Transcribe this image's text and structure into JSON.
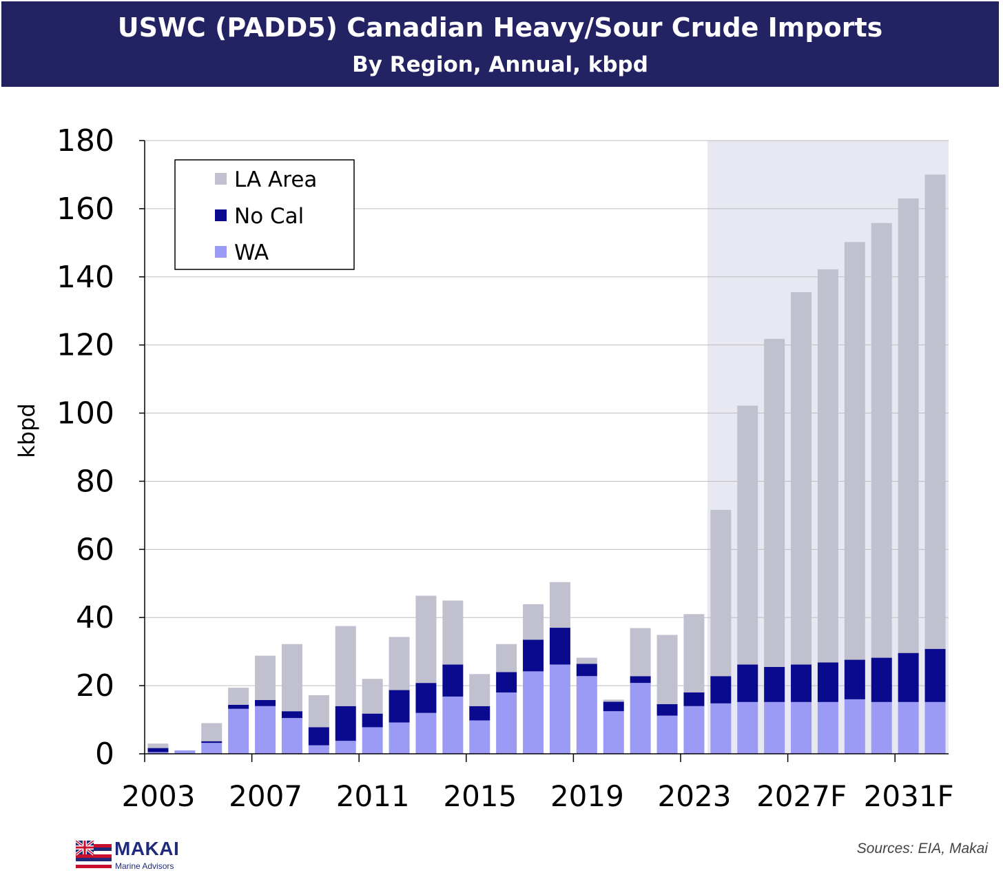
{
  "header": {
    "title": "USWC (PADD5) Canadian Heavy/Sour Crude Imports",
    "subtitle": "By Region, Annual, kbpd"
  },
  "footer": {
    "source": "Sources: EIA, Makai",
    "logo_name": "MAKAI",
    "logo_tagline": "Marine Advisors"
  },
  "colors": {
    "title_bar": "#232263",
    "la_area": "#c0c0cf",
    "no_cal": "#0a0a8f",
    "wa": "#9b9bf5",
    "forecast_shade": "#e7e8f2",
    "gridline": "#bdbdbd"
  },
  "chart_data": {
    "type": "bar",
    "stacked": true,
    "ylabel": "kbpd",
    "ylim": [
      0,
      180
    ],
    "yticks": [
      0,
      20,
      40,
      60,
      80,
      100,
      120,
      140,
      160,
      180
    ],
    "grid": true,
    "legend_position": "top-left",
    "categories": [
      "2003",
      "2004",
      "2005",
      "2006",
      "2007",
      "2008",
      "2009",
      "2010",
      "2011",
      "2012",
      "2013",
      "2014",
      "2015",
      "2016",
      "2017",
      "2018",
      "2019",
      "2020",
      "2021",
      "2022",
      "2023",
      "2024",
      "2025",
      "2026",
      "2027F",
      "2028",
      "2029",
      "2030",
      "2031F",
      "2032"
    ],
    "x_tick_labels": [
      "2003",
      "2007",
      "2011",
      "2015",
      "2019",
      "2023",
      "2027F",
      "2031F"
    ],
    "forecast_shaded_from": "2024",
    "series": [
      {
        "name": "WA",
        "color_key": "wa",
        "values": [
          0.5,
          1.0,
          3.2,
          13.2,
          14.0,
          10.5,
          2.5,
          3.8,
          7.8,
          9.2,
          12.0,
          16.8,
          9.8,
          18.0,
          24.2,
          26.2,
          22.8,
          12.5,
          20.8,
          11.2,
          14.0,
          14.8,
          15.2,
          15.2,
          15.2,
          15.2,
          16.0,
          15.2,
          15.2,
          15.2
        ]
      },
      {
        "name": "No Cal",
        "color_key": "no_cal",
        "values": [
          1.2,
          0.0,
          0.5,
          1.2,
          1.8,
          2.0,
          5.3,
          10.2,
          4.0,
          9.5,
          8.8,
          9.4,
          4.2,
          6.0,
          9.3,
          10.8,
          3.6,
          2.8,
          2.0,
          3.4,
          4.0,
          8.0,
          11.0,
          10.3,
          11.0,
          11.6,
          11.6,
          13.0,
          14.4,
          15.6
        ]
      },
      {
        "name": "LA Area",
        "color_key": "la_area",
        "values": [
          1.3,
          0.0,
          5.3,
          5.0,
          13.0,
          19.7,
          9.4,
          23.5,
          10.2,
          15.6,
          25.6,
          18.8,
          9.4,
          8.2,
          10.4,
          13.4,
          1.8,
          0.6,
          14.1,
          20.3,
          23.0,
          48.8,
          76.0,
          96.3,
          109.3,
          115.4,
          122.6,
          127.6,
          133.4,
          139.2
        ]
      }
    ]
  }
}
